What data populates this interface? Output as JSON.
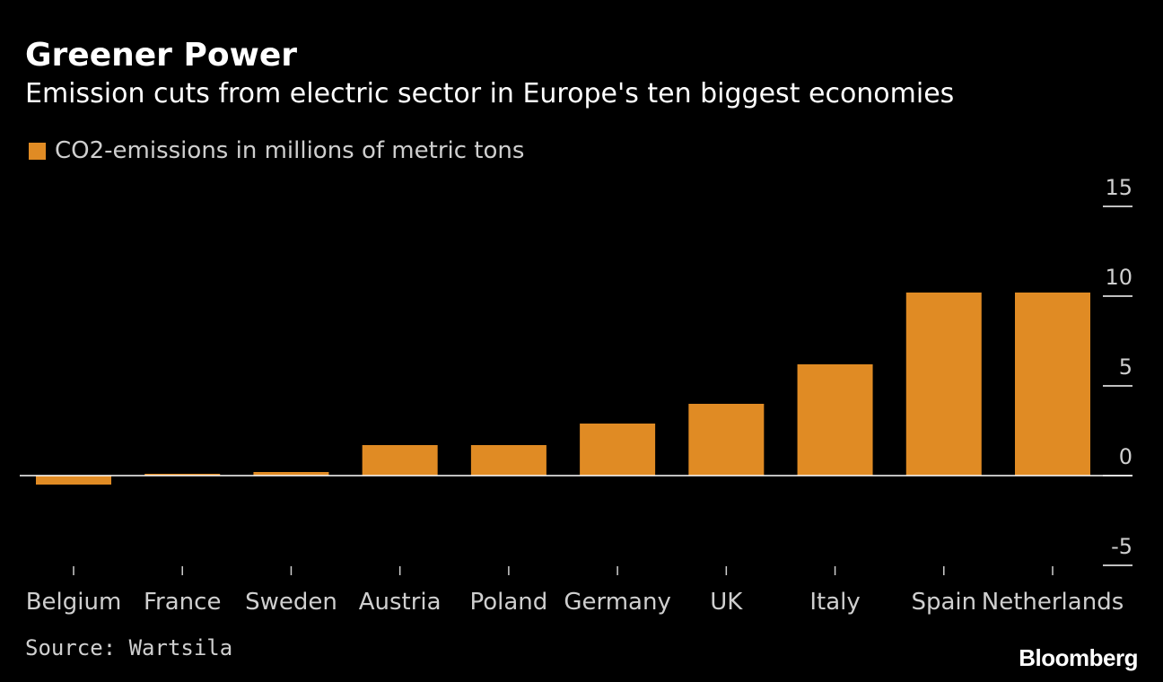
{
  "header": {
    "title": "Greener Power",
    "subtitle": "Emission cuts from electric sector in Europe's ten biggest economies"
  },
  "legend": {
    "label": "CO2-emissions in millions of metric tons"
  },
  "footer": {
    "source": "Source: Wartsila",
    "logo": "Bloomberg"
  },
  "colors": {
    "background": "#000000",
    "bar": "#e08b24",
    "axis": "#ffffff",
    "tick_text": "#cfcfcf"
  },
  "chart_data": {
    "type": "bar",
    "categories": [
      "Belgium",
      "France",
      "Sweden",
      "Austria",
      "Poland",
      "Germany",
      "UK",
      "Italy",
      "Spain",
      "Netherlands"
    ],
    "series": [
      {
        "name": "CO2-emissions in millions of metric tons",
        "values": [
          -0.5,
          0.1,
          0.2,
          1.7,
          1.7,
          2.9,
          4.0,
          6.2,
          10.2,
          10.2
        ]
      }
    ],
    "title": "Greener Power",
    "subtitle": "Emission cuts from electric sector in Europe's ten biggest economies",
    "ylim": [
      -5,
      15
    ],
    "yticks": [
      15,
      10,
      5,
      0,
      -5
    ],
    "ytick_labels": [
      "15",
      "10",
      "5",
      "0",
      "-5"
    ],
    "y_axis_side": "right",
    "grid": false,
    "legend_position": "top-left"
  }
}
